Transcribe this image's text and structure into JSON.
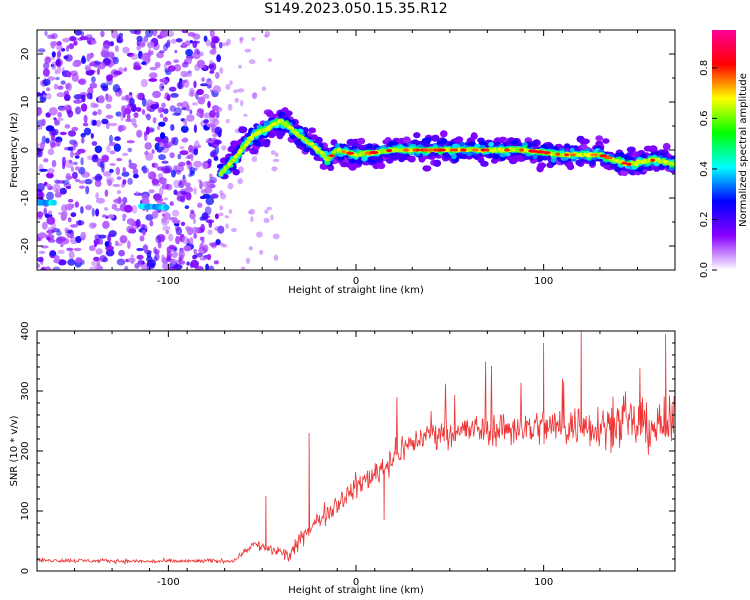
{
  "title": "S149.2023.050.15.35.R12",
  "chart_data": [
    {
      "type": "heatmap",
      "xlabel": "Height of straight line (km)",
      "ylabel": "Frequency (Hz)",
      "xlim": [
        -170,
        170
      ],
      "ylim": [
        -25,
        25
      ],
      "xticks": [
        -100,
        0,
        100
      ],
      "yticks": [
        -20,
        -10,
        0,
        10,
        20
      ],
      "ridge": [
        {
          "x": -170,
          "y": -11
        },
        {
          "x": -150,
          "y": -11
        },
        {
          "x": -100,
          "y": -12
        },
        {
          "x": -75,
          "y": -6
        },
        {
          "x": -65,
          "y": -2
        },
        {
          "x": -55,
          "y": 3
        },
        {
          "x": -40,
          "y": 6
        },
        {
          "x": -30,
          "y": 3
        },
        {
          "x": -20,
          "y": 0
        },
        {
          "x": -15,
          "y": -2
        },
        {
          "x": -10,
          "y": 0
        },
        {
          "x": 0,
          "y": -1
        },
        {
          "x": 20,
          "y": 0
        },
        {
          "x": 60,
          "y": 0
        },
        {
          "x": 90,
          "y": 0
        },
        {
          "x": 110,
          "y": -1
        },
        {
          "x": 130,
          "y": -1
        },
        {
          "x": 145,
          "y": -3
        },
        {
          "x": 160,
          "y": -2
        },
        {
          "x": 170,
          "y": -3
        }
      ],
      "colorbar": {
        "label": "Normalized spectral amplitude",
        "range": [
          0,
          0.95
        ],
        "ticks": [
          "0.0",
          "0.2",
          "0.4",
          "0.6",
          "0.8"
        ],
        "tick_values": [
          0,
          0.2,
          0.4,
          0.6,
          0.8
        ],
        "colors": [
          "#ffffff",
          "#8800ff",
          "#0000ff",
          "#00ffff",
          "#00ff00",
          "#ffff00",
          "#ff0000",
          "#ff0099"
        ]
      }
    },
    {
      "type": "line",
      "xlabel": "Height of straight line (km)",
      "ylabel": "SNR (10 * v/v)",
      "xlim": [
        -170,
        170
      ],
      "ylim": [
        0,
        400
      ],
      "xticks": [
        -100,
        0,
        100
      ],
      "yticks": [
        0,
        100,
        200,
        300,
        400
      ],
      "color": "#ee3333",
      "trend": [
        {
          "x": -170,
          "y": 18
        },
        {
          "x": -110,
          "y": 16
        },
        {
          "x": -65,
          "y": 17
        },
        {
          "x": -55,
          "y": 45
        },
        {
          "x": -45,
          "y": 35
        },
        {
          "x": -35,
          "y": 25
        },
        {
          "x": -28,
          "y": 60
        },
        {
          "x": -15,
          "y": 100
        },
        {
          "x": 0,
          "y": 140
        },
        {
          "x": 15,
          "y": 175
        },
        {
          "x": 25,
          "y": 205
        },
        {
          "x": 40,
          "y": 230
        },
        {
          "x": 60,
          "y": 235
        },
        {
          "x": 100,
          "y": 240
        },
        {
          "x": 140,
          "y": 245
        },
        {
          "x": 170,
          "y": 240
        }
      ],
      "spikes": [
        {
          "x": -48,
          "y": 125
        },
        {
          "x": -25,
          "y": 230
        },
        {
          "x": 15,
          "y": 85
        },
        {
          "x": 100,
          "y": 380
        },
        {
          "x": 120,
          "y": 400
        },
        {
          "x": 165,
          "y": 395
        }
      ]
    }
  ]
}
